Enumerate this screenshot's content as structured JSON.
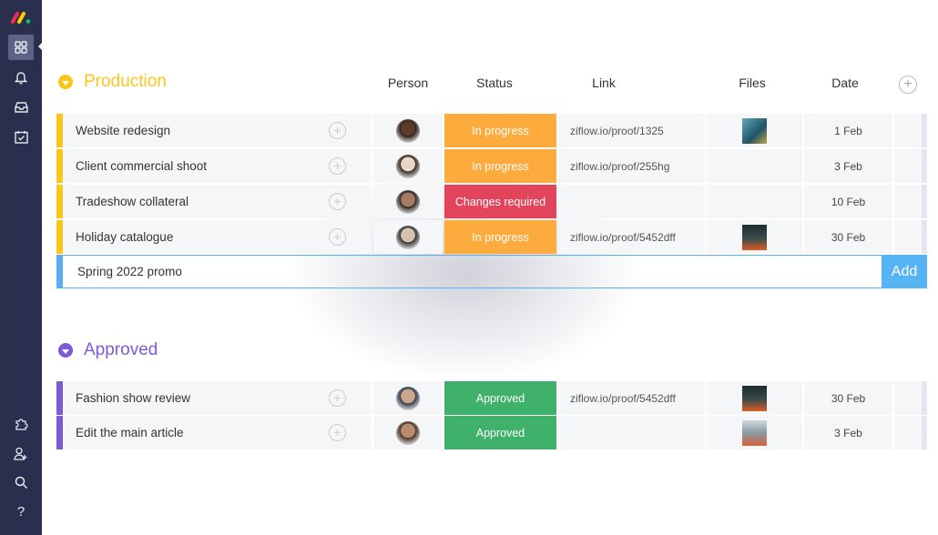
{
  "colors": {
    "sidebar": "#292f4c",
    "production": "#fdc51a",
    "approved": "#7e5bd6",
    "in_progress": "#fdab3d",
    "changes_required": "#e2445c",
    "approved_status": "#3fb16b",
    "accent": "#56b4f5"
  },
  "sidebar": {
    "top": [
      {
        "icon": "grid-icon",
        "active": true
      },
      {
        "icon": "bell-icon"
      },
      {
        "icon": "inbox-icon"
      },
      {
        "icon": "calendar-check-icon"
      }
    ],
    "bottom": [
      {
        "icon": "puzzle-icon"
      },
      {
        "icon": "add-user-icon"
      },
      {
        "icon": "search-icon"
      },
      {
        "icon": "help-icon"
      }
    ]
  },
  "columns": {
    "person": "Person",
    "status": "Status",
    "link": "Link",
    "files": "Files",
    "date": "Date"
  },
  "groups": [
    {
      "title": "Production",
      "rows": [
        {
          "name": "Website redesign",
          "status": "In progress",
          "link": "ziflow.io/proof/1325",
          "file": true,
          "date": "1 Feb"
        },
        {
          "name": "Client commercial shoot",
          "status": "In progress",
          "link": "ziflow.io/proof/255hg",
          "file": false,
          "date": "3 Feb"
        },
        {
          "name": "Tradeshow collateral",
          "status": "Changes required",
          "link": "",
          "file": false,
          "date": "10 Feb"
        },
        {
          "name": "Holiday catalogue",
          "status": "In progress",
          "link": "ziflow.io/proof/5452dff",
          "file": true,
          "date": "30 Feb"
        }
      ]
    },
    {
      "title": "Approved",
      "rows": [
        {
          "name": "Fashion show review",
          "status": "Approved",
          "link": "ziflow.io/proof/5452dff",
          "file": true,
          "date": "30 Feb"
        },
        {
          "name": "Edit the main article",
          "status": "Approved",
          "link": "",
          "file": true,
          "date": "3 Feb"
        }
      ]
    }
  ],
  "new_item": {
    "value": "Spring 2022 promo",
    "add_label": "Add"
  }
}
